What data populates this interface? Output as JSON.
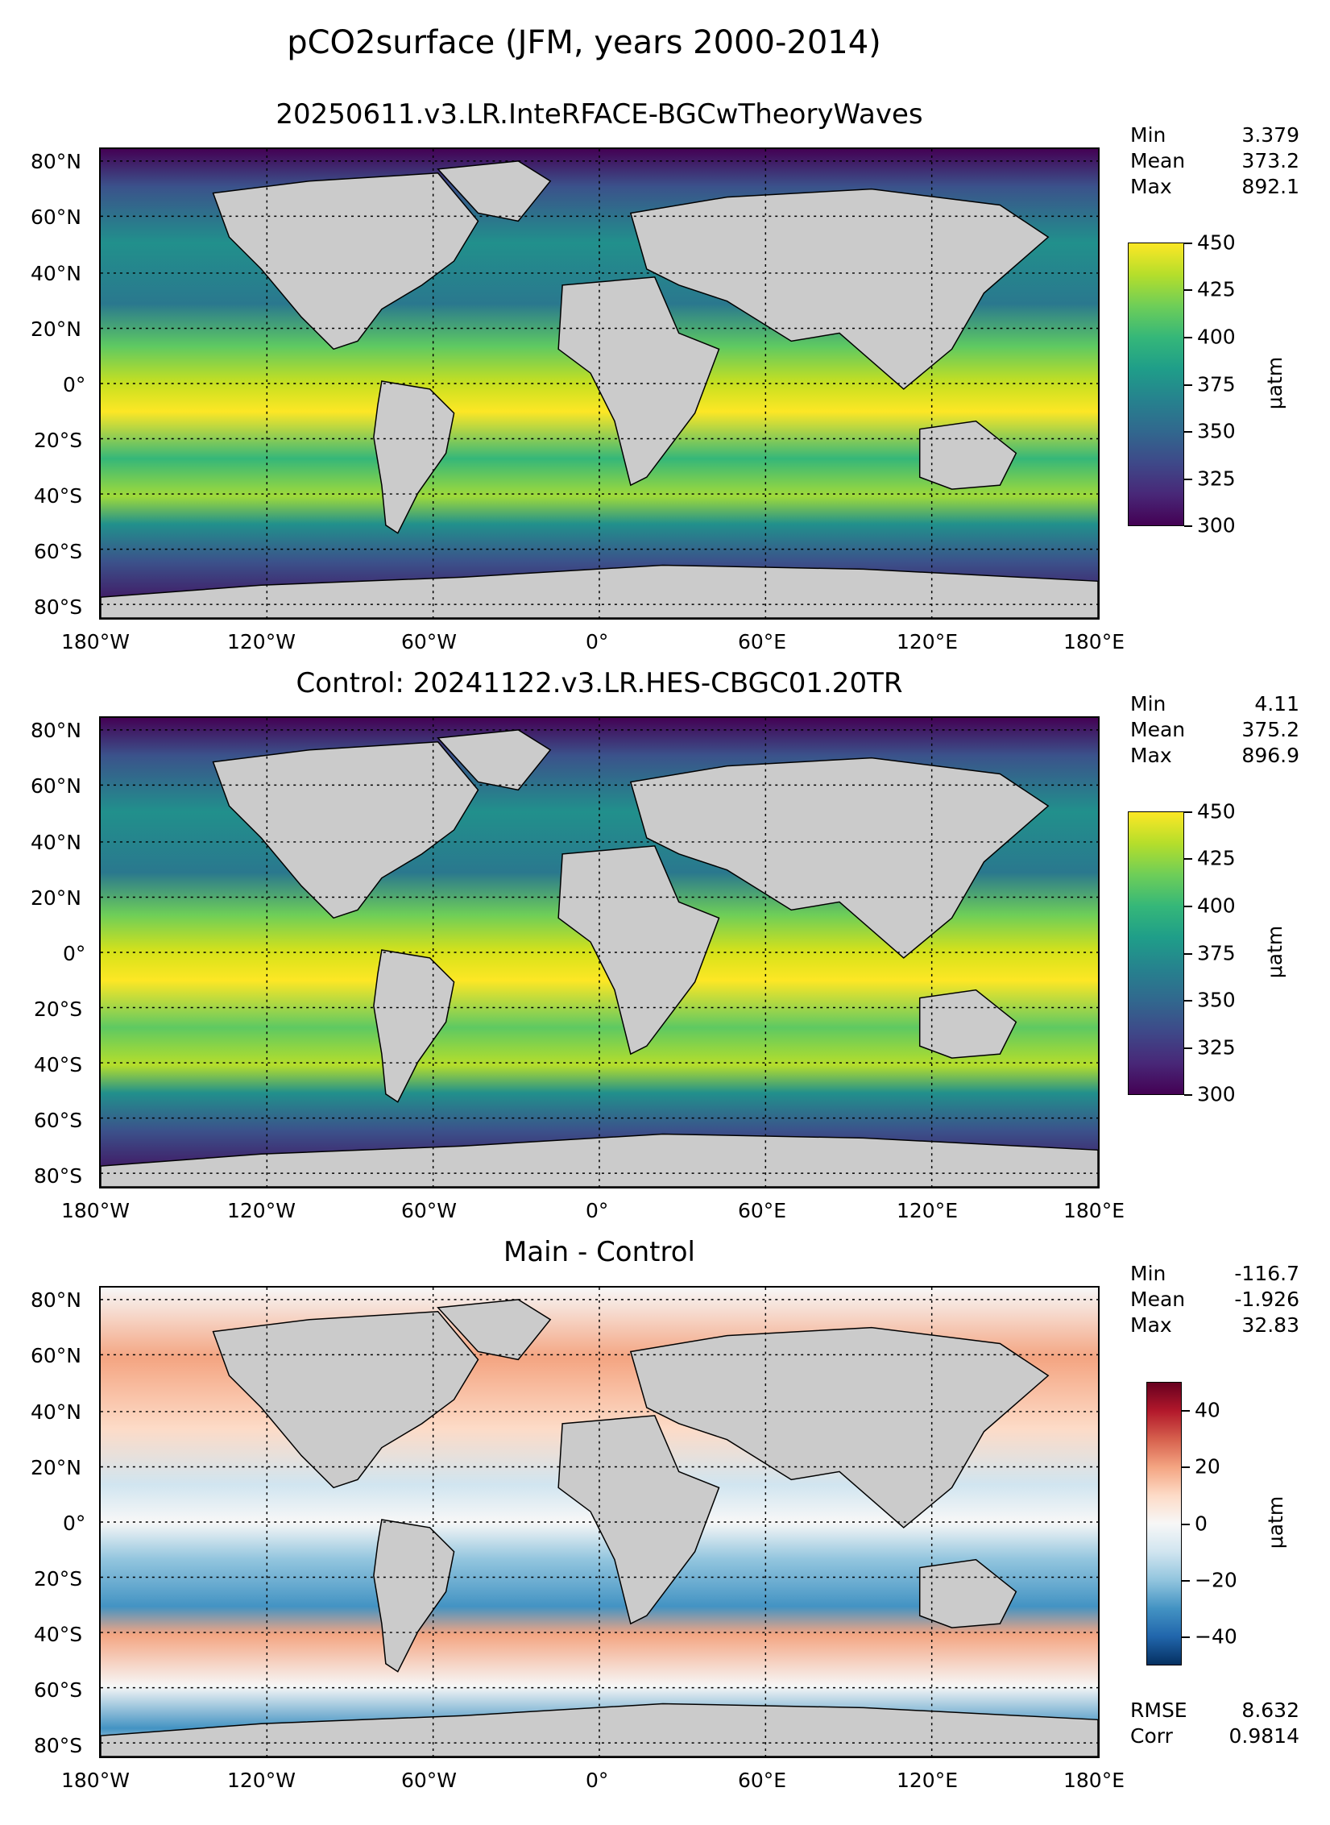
{
  "figure": {
    "title": "pCO2surface (JFM, years 2000-2014)"
  },
  "axes": {
    "x_ticks": [
      "180°W",
      "120°W",
      "60°W",
      "0°",
      "60°E",
      "120°E",
      "180°E"
    ],
    "y_ticks": [
      "80°N",
      "60°N",
      "40°N",
      "20°N",
      "0°",
      "20°S",
      "40°S",
      "60°S",
      "80°S"
    ],
    "x_range": [
      -180,
      180
    ],
    "y_range": [
      -85,
      85
    ],
    "gridlines": "dotted"
  },
  "panels": [
    {
      "id": "main",
      "title": "20250611.v3.LR.InteRFACE-BGCwTheoryWaves",
      "stats": {
        "min_label": "Min",
        "min": "3.379",
        "mean_label": "Mean",
        "mean": "373.2",
        "max_label": "Max",
        "max": "892.1"
      },
      "colorbar": {
        "colormap": "viridis",
        "ticks": [
          "450",
          "425",
          "400",
          "375",
          "350",
          "325",
          "300"
        ],
        "range": [
          300,
          450
        ],
        "unit": "μatm"
      }
    },
    {
      "id": "control",
      "title": "Control: 20241122.v3.LR.HES-CBGC01.20TR",
      "stats": {
        "min_label": "Min",
        "min": "4.11",
        "mean_label": "Mean",
        "mean": "375.2",
        "max_label": "Max",
        "max": "896.9"
      },
      "colorbar": {
        "colormap": "viridis",
        "ticks": [
          "450",
          "425",
          "400",
          "375",
          "350",
          "325",
          "300"
        ],
        "range": [
          300,
          450
        ],
        "unit": "μatm"
      }
    },
    {
      "id": "diff",
      "title": "Main - Control",
      "stats": {
        "min_label": "Min",
        "min": "-116.7",
        "mean_label": "Mean",
        "mean": "-1.926",
        "max_label": "Max",
        "max": "32.83"
      },
      "colorbar": {
        "colormap": "RdBu_r",
        "ticks": [
          "40",
          "20",
          "0",
          "−20",
          "−40"
        ],
        "range": [
          -50,
          50
        ],
        "unit": "μatm"
      },
      "metrics": {
        "rmse_label": "RMSE",
        "rmse": "8.632",
        "corr_label": "Corr",
        "corr": "0.9814"
      }
    }
  ],
  "colors": {
    "land": "#cbcbcb",
    "coast": "#000000",
    "viridis_low": "#440154",
    "viridis_mid": "#21908c",
    "viridis_high": "#fde725",
    "diff_low": "#053061",
    "diff_zero": "#f7f7f7",
    "diff_high": "#67001f"
  }
}
